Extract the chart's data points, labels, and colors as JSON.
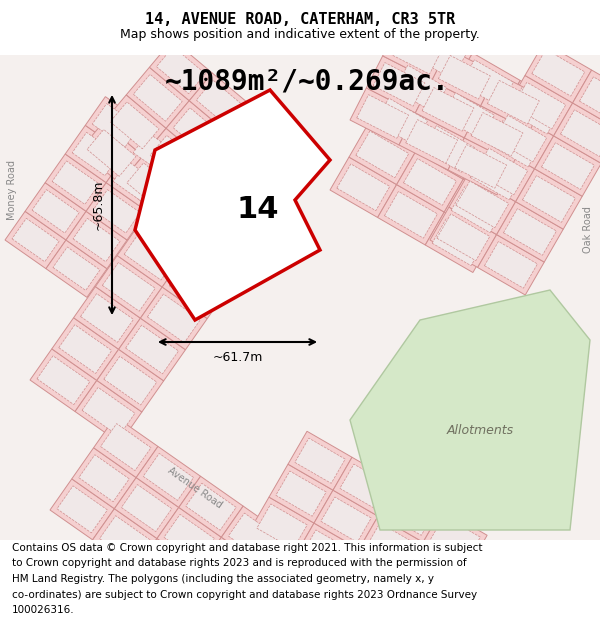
{
  "title": "14, AVENUE ROAD, CATERHAM, CR3 5TR",
  "subtitle": "Map shows position and indicative extent of the property.",
  "area_text": "~1089m²/~0.269ac.",
  "plot_number": "14",
  "dim_vertical": "~65.8m",
  "dim_horizontal": "~61.7m",
  "allotments_label": "Allotments",
  "footer_lines": [
    "Contains OS data © Crown copyright and database right 2021. This information is subject",
    "to Crown copyright and database rights 2023 and is reproduced with the permission of",
    "HM Land Registry. The polygons (including the associated geometry, namely x, y",
    "co-ordinates) are subject to Crown copyright and database rights 2023 Ordnance Survey",
    "100026316."
  ],
  "map_bg": "#f5f0ee",
  "building_fc": "#f5d0d0",
  "building_ec": "#d09090",
  "plot_fill": "#ffffff",
  "plot_edge": "#cc0000",
  "allotments_fill": "#d5e8c8",
  "allotments_ec": "#b0c8a0",
  "title_fontsize": 11,
  "subtitle_fontsize": 9,
  "area_fontsize": 20,
  "footer_fontsize": 7.5
}
